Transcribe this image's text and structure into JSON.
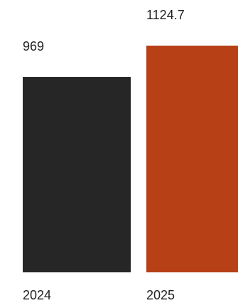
{
  "chart_data": {
    "type": "bar",
    "categories": [
      "2024",
      "2025"
    ],
    "values": [
      969,
      1124.7
    ],
    "value_labels": [
      "969",
      "1124.7"
    ],
    "colors": [
      "#262626",
      "#b84016"
    ],
    "ylim": [
      0,
      1124.7
    ],
    "grid": false,
    "legend": "none"
  }
}
